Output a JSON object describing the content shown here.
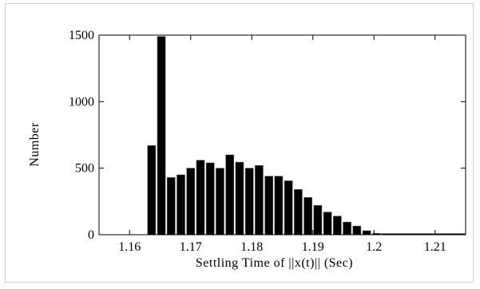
{
  "chart_data": {
    "type": "bar",
    "title": "",
    "xlabel": "Settling Time of ||x(t)|| (Sec)",
    "ylabel": "Number",
    "xlim": [
      1.155,
      1.215
    ],
    "ylim": [
      0,
      1500
    ],
    "xticks": [
      1.16,
      1.17,
      1.18,
      1.19,
      1.2,
      1.21
    ],
    "xtick_labels": [
      "1.16",
      "1.17",
      "1.18",
      "1.19",
      "1.2",
      "1.21"
    ],
    "yticks": [
      0,
      500,
      1000,
      1500
    ],
    "ytick_labels": [
      "0",
      "500",
      "1000",
      "1500"
    ],
    "bin_width": 0.0016,
    "bars": [
      {
        "x": 1.1636,
        "value": 670
      },
      {
        "x": 1.1652,
        "value": 1490
      },
      {
        "x": 1.1668,
        "value": 430
      },
      {
        "x": 1.1684,
        "value": 450
      },
      {
        "x": 1.17,
        "value": 500
      },
      {
        "x": 1.1716,
        "value": 560
      },
      {
        "x": 1.1732,
        "value": 540
      },
      {
        "x": 1.1748,
        "value": 500
      },
      {
        "x": 1.1764,
        "value": 600
      },
      {
        "x": 1.178,
        "value": 545
      },
      {
        "x": 1.1796,
        "value": 500
      },
      {
        "x": 1.1812,
        "value": 520
      },
      {
        "x": 1.1828,
        "value": 440
      },
      {
        "x": 1.1844,
        "value": 440
      },
      {
        "x": 1.186,
        "value": 405
      },
      {
        "x": 1.1876,
        "value": 340
      },
      {
        "x": 1.1892,
        "value": 280
      },
      {
        "x": 1.1908,
        "value": 220
      },
      {
        "x": 1.1924,
        "value": 170
      },
      {
        "x": 1.194,
        "value": 140
      },
      {
        "x": 1.1956,
        "value": 95
      },
      {
        "x": 1.1972,
        "value": 65
      },
      {
        "x": 1.1988,
        "value": 30
      },
      {
        "x": 1.2004,
        "value": 10
      }
    ],
    "grid": false,
    "bar_color": "#000000"
  }
}
